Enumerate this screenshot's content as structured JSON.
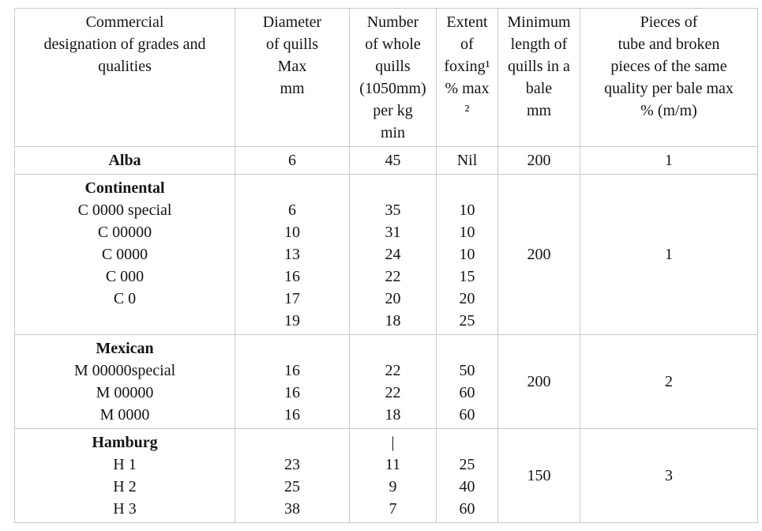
{
  "table": {
    "header": {
      "designation": [
        "Commercial",
        "designation of grades and",
        "qualities"
      ],
      "diameter": [
        "Diameter",
        "of quills",
        "Max",
        "mm"
      ],
      "number": [
        "Number",
        "of whole",
        "quills",
        "(1050mm)",
        "per kg",
        "min"
      ],
      "foxing": [
        "Extent",
        "of",
        "foxing¹",
        "% max",
        "²"
      ],
      "min_length": [
        "Minimum",
        "length of",
        "quills in a",
        "bale",
        "mm"
      ],
      "pieces": [
        "Pieces of",
        "tube and broken",
        "pieces of the same",
        "quality per bale max",
        "% (m/m)"
      ]
    },
    "sections": [
      {
        "group": "Alba",
        "designation": [],
        "diameter": [
          "6"
        ],
        "number": [
          "45"
        ],
        "foxing": [
          "Nil"
        ],
        "min_length": "200",
        "pieces": "1"
      },
      {
        "group": "Continental",
        "designation": [
          "C 0000 special",
          "C 00000",
          "C 0000",
          "C 000",
          "C 0",
          ""
        ],
        "diameter": [
          "",
          "6",
          "10",
          "13",
          "16",
          "17",
          "19"
        ],
        "number": [
          "",
          "35",
          "31",
          "24",
          "22",
          "20",
          "18"
        ],
        "foxing": [
          "",
          "10",
          "10",
          "10",
          "15",
          "20",
          "25"
        ],
        "min_length": "200",
        "pieces": "1"
      },
      {
        "group": "Mexican",
        "designation": [
          "M 00000special",
          "M 00000",
          "M 0000"
        ],
        "diameter": [
          "",
          "16",
          "16",
          "16"
        ],
        "number": [
          "",
          "22",
          "22",
          "18"
        ],
        "foxing": [
          "",
          "50",
          "60",
          "60"
        ],
        "min_length": "200",
        "pieces": "2"
      },
      {
        "group": "Hamburg",
        "designation": [
          "H 1",
          "H 2",
          "H 3"
        ],
        "diameter": [
          "",
          "23",
          "25",
          "38"
        ],
        "number": [
          "|",
          "11",
          "9",
          "7"
        ],
        "foxing": [
          "",
          "25",
          "40",
          "60"
        ],
        "min_length": "150",
        "pieces": "3"
      }
    ]
  }
}
